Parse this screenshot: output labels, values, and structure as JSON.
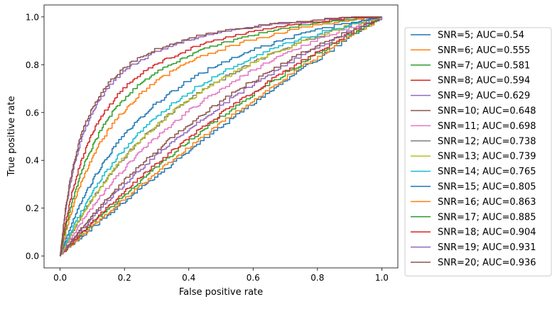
{
  "chart_data": {
    "type": "line",
    "title": "",
    "xlabel": "False positive rate",
    "ylabel": "True positive rate",
    "xlim": [
      -0.05,
      1.05
    ],
    "ylim": [
      -0.05,
      1.05
    ],
    "xticks": [
      "0.0",
      "0.2",
      "0.4",
      "0.6",
      "0.8",
      "1.0"
    ],
    "yticks": [
      "0.0",
      "0.2",
      "0.4",
      "0.6",
      "0.8",
      "1.0"
    ],
    "grid": false,
    "legend_position": "outside-right",
    "series": [
      {
        "name": "SNR=5; AUC=0.54",
        "color": "#1f77b4",
        "auc": 0.54
      },
      {
        "name": "SNR=6; AUC=0.555",
        "color": "#ff7f0e",
        "auc": 0.555
      },
      {
        "name": "SNR=7; AUC=0.581",
        "color": "#2ca02c",
        "auc": 0.581
      },
      {
        "name": "SNR=8; AUC=0.594",
        "color": "#d62728",
        "auc": 0.594
      },
      {
        "name": "SNR=9; AUC=0.629",
        "color": "#9467bd",
        "auc": 0.629
      },
      {
        "name": "SNR=10; AUC=0.648",
        "color": "#8c564b",
        "auc": 0.648
      },
      {
        "name": "SNR=11; AUC=0.698",
        "color": "#e377c2",
        "auc": 0.698
      },
      {
        "name": "SNR=12; AUC=0.738",
        "color": "#7f7f7f",
        "auc": 0.738
      },
      {
        "name": "SNR=13; AUC=0.739",
        "color": "#bcbd22",
        "auc": 0.739
      },
      {
        "name": "SNR=14; AUC=0.765",
        "color": "#17becf",
        "auc": 0.765
      },
      {
        "name": "SNR=15; AUC=0.805",
        "color": "#1f77b4",
        "auc": 0.805
      },
      {
        "name": "SNR=16; AUC=0.863",
        "color": "#ff7f0e",
        "auc": 0.863
      },
      {
        "name": "SNR=17; AUC=0.885",
        "color": "#2ca02c",
        "auc": 0.885
      },
      {
        "name": "SNR=18; AUC=0.904",
        "color": "#d62728",
        "auc": 0.904
      },
      {
        "name": "SNR=19; AUC=0.931",
        "color": "#9467bd",
        "auc": 0.931
      },
      {
        "name": "SNR=20; AUC=0.936",
        "color": "#8c564b",
        "auc": 0.936
      }
    ]
  }
}
